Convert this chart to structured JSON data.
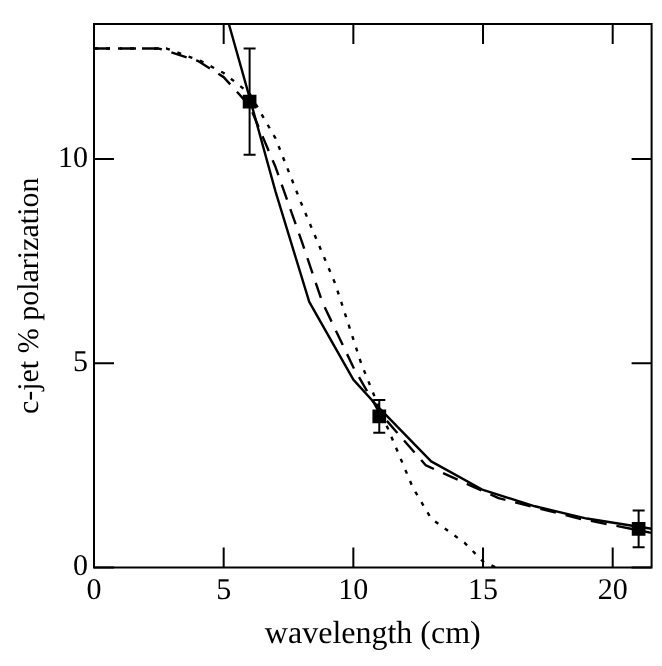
{
  "chart_data": {
    "type": "line",
    "xlabel": "wavelength (cm)",
    "ylabel": "c-jet % polarization",
    "xlim": [
      0,
      21.5
    ],
    "xticks": [
      0,
      5,
      10,
      15,
      20
    ],
    "ylim": [
      0,
      13.3
    ],
    "yticks": [
      0,
      5,
      10
    ],
    "grid": false,
    "legend": false,
    "series": [
      {
        "color": "#000000",
        "line_style": "solid",
        "marker": "none",
        "x": [
          5.2,
          6,
          7,
          8.3,
          10,
          11,
          13,
          15,
          17,
          19,
          21,
          21.5
        ],
        "values": [
          13.3,
          11.5,
          9.2,
          6.5,
          4.6,
          3.9,
          2.6,
          1.9,
          1.5,
          1.2,
          1.0,
          0.95
        ]
      },
      {
        "color": "#000000",
        "line_style": "dashed",
        "marker": "none",
        "x": [
          0,
          2.5,
          4,
          5,
          6,
          7,
          8,
          8.8,
          10,
          11,
          12.8,
          15.6,
          18.7,
          21.5
        ],
        "values": [
          12.7,
          12.7,
          12.4,
          12.0,
          11.3,
          9.8,
          8.0,
          6.5,
          4.9,
          3.8,
          2.5,
          1.7,
          1.2,
          0.85
        ]
      },
      {
        "color": "#000000",
        "line_style": "dotted",
        "marker": "none",
        "x": [
          0,
          2.8,
          4.1,
          5,
          6,
          7,
          8,
          9.3,
          10.3,
          11,
          12.3,
          13,
          14.3,
          15,
          15.5
        ],
        "values": [
          12.7,
          12.7,
          12.4,
          12.1,
          11.6,
          10.5,
          8.9,
          6.95,
          5.0,
          3.9,
          1.95,
          1.2,
          0.6,
          0.15,
          0
        ]
      },
      {
        "type": "scatter",
        "color": "#000000",
        "marker": "square",
        "x": [
          6,
          11,
          21
        ],
        "values": [
          11.4,
          3.7,
          0.95
        ],
        "errors": [
          [
            10.1,
            12.7
          ],
          [
            3.3,
            4.1
          ],
          [
            0.5,
            1.4
          ]
        ]
      }
    ]
  }
}
